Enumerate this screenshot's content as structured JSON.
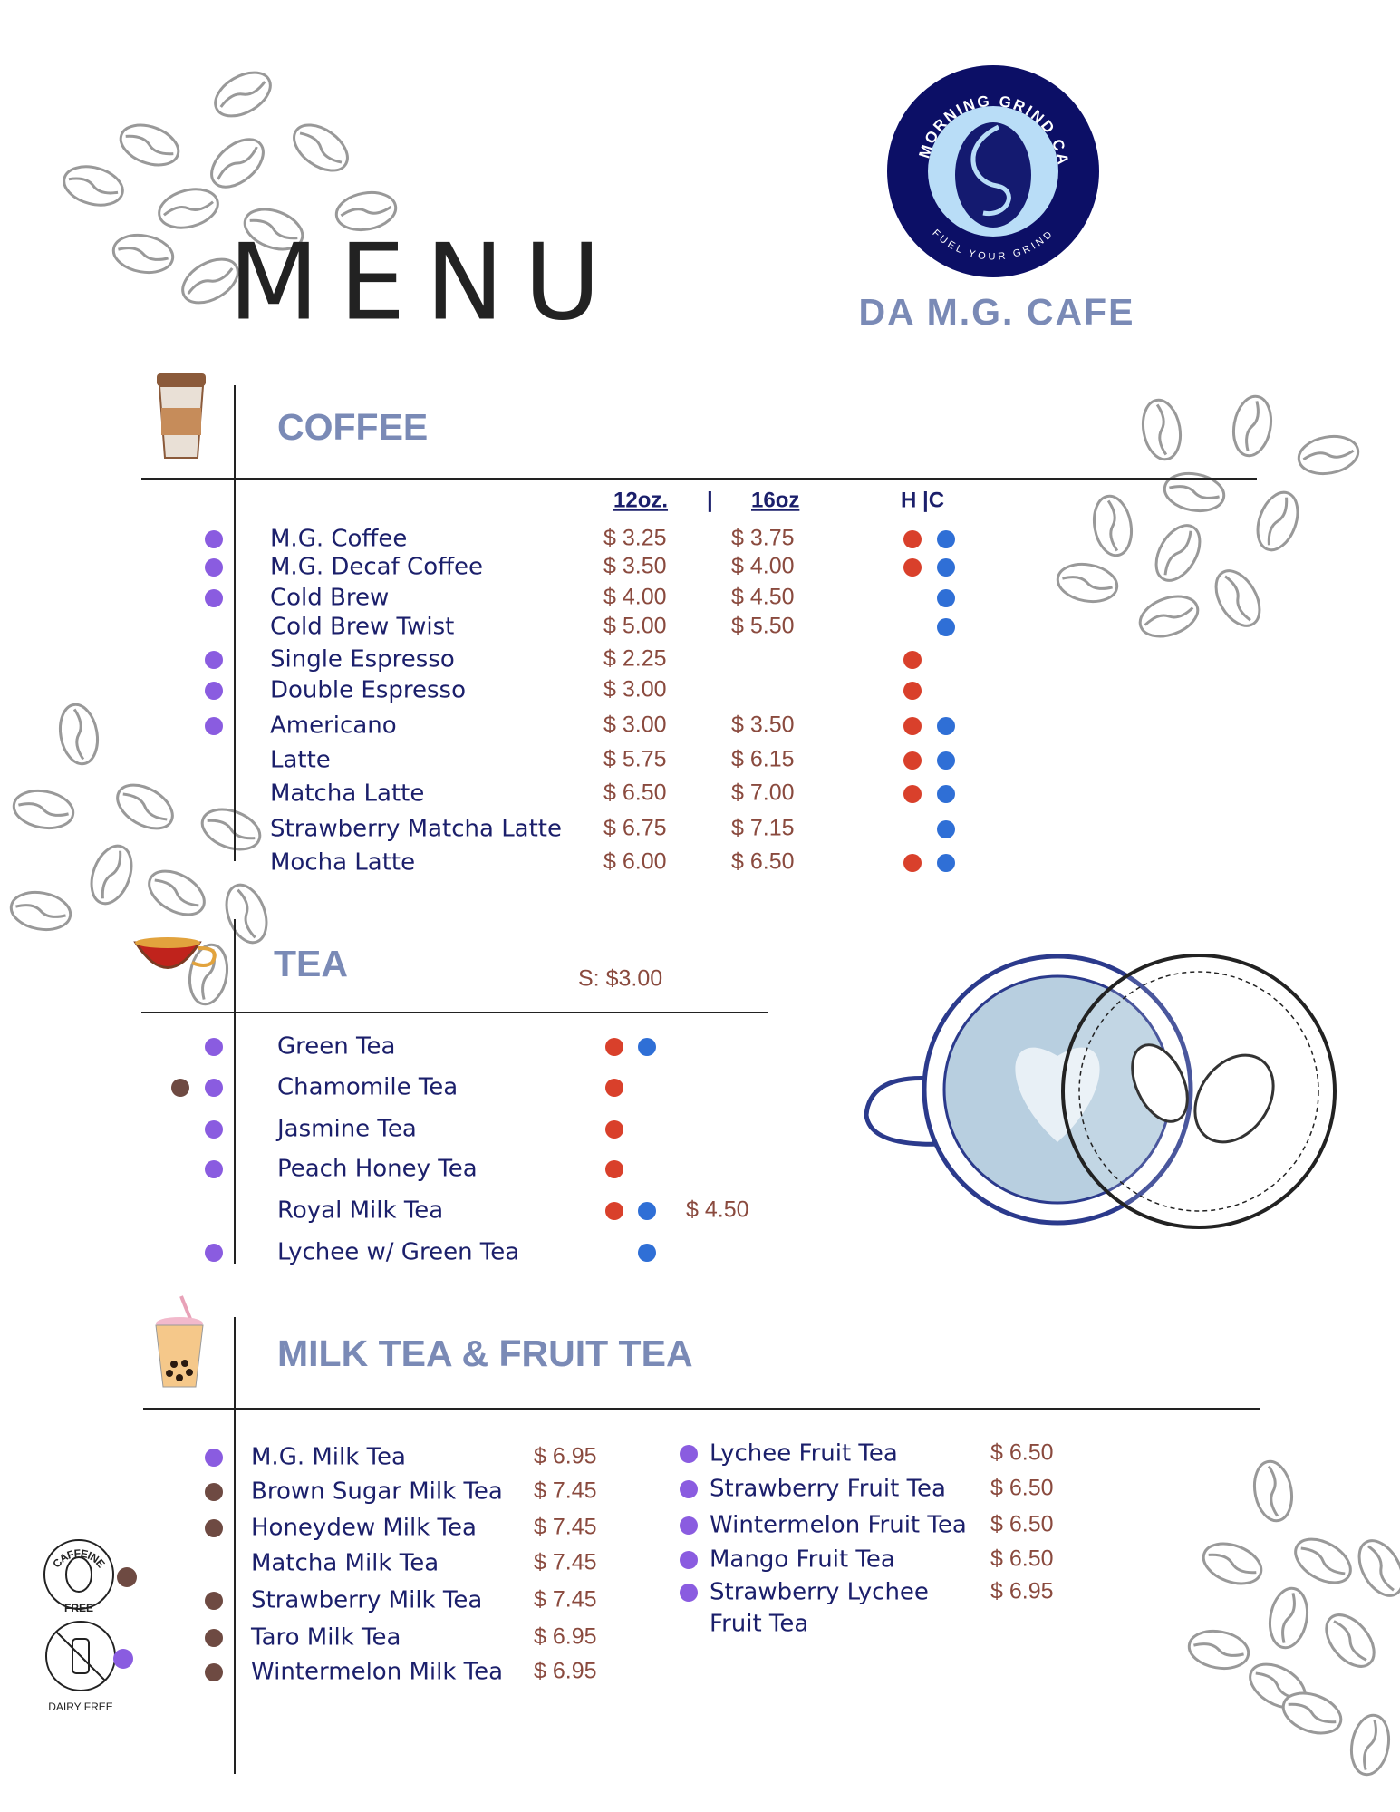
{
  "header": {
    "title": "MENU",
    "brand": "DA M.G. CAFE",
    "logo_top": "DA MORNING GRIND CAFE",
    "logo_bottom": "FUEL YOUR GRIND"
  },
  "coffee": {
    "title": "COFFEE",
    "columns": [
      "12oz.",
      "|",
      "16oz",
      "H |C"
    ],
    "items": [
      {
        "name": "M.G. Coffee",
        "price_12oz": "$ 3.25",
        "price_16oz": "$ 3.75",
        "hot": true,
        "cold": true,
        "dairy_free": true
      },
      {
        "name": "M.G. Decaf Coffee",
        "price_12oz": "$ 3.50",
        "price_16oz": "$ 4.00",
        "hot": true,
        "cold": true,
        "dairy_free": true
      },
      {
        "name": "Cold Brew",
        "price_12oz": "$ 4.00",
        "price_16oz": "$ 4.50",
        "cold": true,
        "dairy_free": true
      },
      {
        "name": "Cold Brew Twist",
        "price_12oz": "$ 5.00",
        "price_16oz": "$ 5.50",
        "cold": true
      },
      {
        "name": "Single Espresso",
        "price_12oz": "$ 2.25",
        "hot": true,
        "dairy_free": true
      },
      {
        "name": "Double Espresso",
        "price_12oz": "$ 3.00",
        "hot": true,
        "dairy_free": true
      },
      {
        "name": "Americano",
        "price_12oz": "$ 3.00",
        "price_16oz": "$ 3.50",
        "hot": true,
        "cold": true,
        "dairy_free": true
      },
      {
        "name": "Latte",
        "price_12oz": "$ 5.75",
        "price_16oz": "$ 6.15",
        "hot": true,
        "cold": true
      },
      {
        "name": "Matcha Latte",
        "price_12oz": "$ 6.50",
        "price_16oz": "$ 7.00",
        "hot": true,
        "cold": true
      },
      {
        "name": "Strawberry Matcha Latte",
        "price_12oz": "$ 6.75",
        "price_16oz": "$ 7.15",
        "cold": true
      },
      {
        "name": "Mocha Latte",
        "price_12oz": "$ 6.00",
        "price_16oz": "$ 6.50",
        "hot": true,
        "cold": true
      }
    ]
  },
  "tea": {
    "title": "TEA",
    "size_price": "S: $3.00",
    "items": [
      {
        "name": "Green Tea",
        "hot": true,
        "cold": true,
        "dairy_free": true
      },
      {
        "name": "Chamomile Tea",
        "hot": true,
        "caffeine_free": true,
        "dairy_free": true
      },
      {
        "name": "Jasmine Tea",
        "hot": true,
        "dairy_free": true
      },
      {
        "name": "Peach Honey Tea",
        "hot": true,
        "dairy_free": true
      },
      {
        "name": "Royal Milk Tea",
        "hot": true,
        "cold": true,
        "extra_price": "$ 4.50"
      },
      {
        "name": "Lychee w/ Green Tea",
        "cold": true,
        "dairy_free": true
      }
    ]
  },
  "milk_tea": {
    "title": "MILK TEA & FRUIT TEA",
    "left": [
      {
        "name": "M.G. Milk Tea",
        "price": "$ 6.95",
        "dairy_free": true
      },
      {
        "name": "Brown Sugar Milk Tea",
        "price": "$ 7.45",
        "caffeine_free": true
      },
      {
        "name": "Honeydew Milk Tea",
        "price": "$ 7.45",
        "caffeine_free": true
      },
      {
        "name": "Matcha Milk Tea",
        "price": "$ 7.45"
      },
      {
        "name": "Strawberry Milk Tea",
        "price": "$ 7.45",
        "caffeine_free": true
      },
      {
        "name": "Taro Milk Tea",
        "price": "$ 6.95",
        "caffeine_free": true
      },
      {
        "name": "Wintermelon Milk Tea",
        "price": "$ 6.95",
        "caffeine_free": true
      }
    ],
    "right": [
      {
        "name": "Lychee Fruit Tea",
        "price": "$ 6.50",
        "dairy_free": true
      },
      {
        "name": "Strawberry Fruit Tea",
        "price": "$ 6.50",
        "dairy_free": true
      },
      {
        "name": "Wintermelon Fruit Tea",
        "price": "$ 6.50",
        "dairy_free": true
      },
      {
        "name": "Mango Fruit Tea",
        "price": "$ 6.50",
        "dairy_free": true
      },
      {
        "name": [
          "Strawberry Lychee",
          "Fruit Tea"
        ],
        "price": "$ 6.95",
        "dairy_free": true
      }
    ]
  },
  "legend": {
    "caffeine_free": [
      "CAFFEINE",
      "FREE"
    ],
    "dairy_free": "DAIRY FREE"
  }
}
